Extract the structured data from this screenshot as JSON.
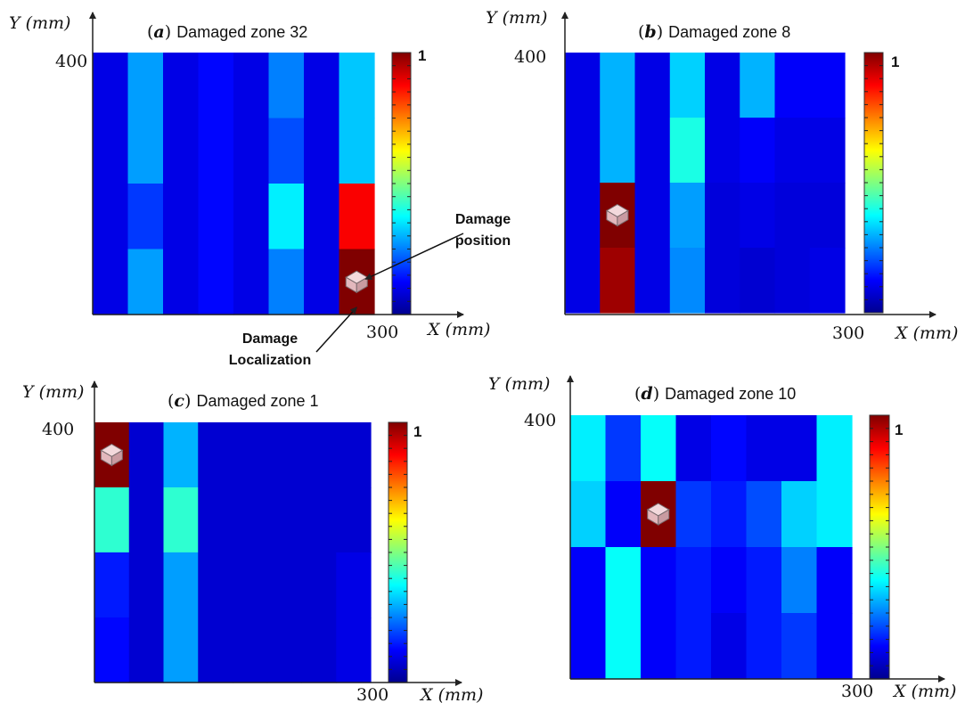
{
  "chart_data": [
    {
      "type": "heatmap",
      "panel_letter": "a",
      "title": "Damaged zone 32",
      "ylabel": "Y (mm)",
      "xlabel": "X (mm)",
      "y_tick": "400",
      "x_tick": "300",
      "colorbar_max_label": "1",
      "colorbar_range": [
        0,
        1
      ],
      "rows": 4,
      "cols": 8,
      "values": [
        [
          0.1,
          0.28,
          0.1,
          0.13,
          0.1,
          0.25,
          0.1,
          0.32
        ],
        [
          0.1,
          0.28,
          0.1,
          0.13,
          0.1,
          0.2,
          0.1,
          0.32
        ],
        [
          0.1,
          0.18,
          0.1,
          0.13,
          0.1,
          0.36,
          0.1,
          0.88
        ],
        [
          0.1,
          0.28,
          0.1,
          0.13,
          0.1,
          0.25,
          0.1,
          1.0
        ]
      ],
      "damage_marker": {
        "row": 3,
        "col": 7
      },
      "annotations": [
        {
          "text_lines": [
            "Damage",
            "position"
          ]
        },
        {
          "text_lines": [
            "Damage",
            "Localization"
          ]
        }
      ]
    },
    {
      "type": "heatmap",
      "panel_letter": "b",
      "title": "Damaged zone 8",
      "ylabel": "Y (mm)",
      "xlabel": "X (mm)",
      "y_tick": "400",
      "x_tick": "300",
      "colorbar_max_label": "1",
      "colorbar_range": [
        0,
        1
      ],
      "rows": 4,
      "cols": 8,
      "values": [
        [
          0.1,
          0.3,
          0.1,
          0.33,
          0.1,
          0.3,
          0.12,
          0.12
        ],
        [
          0.1,
          0.3,
          0.1,
          0.4,
          0.1,
          0.12,
          0.1,
          0.1
        ],
        [
          0.1,
          1.0,
          0.1,
          0.28,
          0.09,
          0.1,
          0.09,
          0.09
        ],
        [
          0.1,
          0.97,
          0.1,
          0.26,
          0.09,
          0.08,
          0.09,
          0.1
        ]
      ],
      "damage_marker": {
        "row": 2,
        "col": 1
      }
    },
    {
      "type": "heatmap",
      "panel_letter": "c",
      "title": "Damaged zone 1",
      "ylabel": "Y (mm)",
      "xlabel": "X (mm)",
      "y_tick": "400",
      "x_tick": "300",
      "colorbar_max_label": "1",
      "colorbar_range": [
        0,
        1
      ],
      "rows": 4,
      "cols": 8,
      "values": [
        [
          1.0,
          0.08,
          0.3,
          0.08,
          0.08,
          0.08,
          0.08,
          0.08
        ],
        [
          0.42,
          0.08,
          0.42,
          0.08,
          0.08,
          0.08,
          0.08,
          0.08
        ],
        [
          0.15,
          0.08,
          0.28,
          0.08,
          0.08,
          0.08,
          0.08,
          0.1
        ],
        [
          0.13,
          0.08,
          0.28,
          0.08,
          0.08,
          0.08,
          0.08,
          0.1
        ]
      ],
      "damage_marker": {
        "row": 0,
        "col": 0
      }
    },
    {
      "type": "heatmap",
      "panel_letter": "d",
      "title": "Damaged zone 10",
      "ylabel": "Y (mm)",
      "xlabel": "X (mm)",
      "y_tick": "400",
      "x_tick": "300",
      "colorbar_max_label": "1",
      "colorbar_range": [
        0,
        1
      ],
      "rows": 4,
      "cols": 8,
      "values": [
        [
          0.36,
          0.18,
          0.38,
          0.1,
          0.13,
          0.1,
          0.1,
          0.36
        ],
        [
          0.33,
          0.12,
          1.0,
          0.18,
          0.15,
          0.2,
          0.33,
          0.36
        ],
        [
          0.12,
          0.38,
          0.12,
          0.15,
          0.12,
          0.15,
          0.25,
          0.12
        ],
        [
          0.12,
          0.38,
          0.12,
          0.15,
          0.1,
          0.15,
          0.18,
          0.12
        ]
      ],
      "damage_marker": {
        "row": 1,
        "col": 2
      }
    }
  ]
}
